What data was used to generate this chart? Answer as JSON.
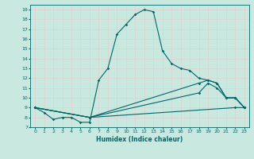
{
  "xlabel": "Humidex (Indice chaleur)",
  "background_color": "#c8e8e0",
  "grid_color": "#e0d0d0",
  "line_color": "#006868",
  "xlim": [
    -0.5,
    23.5
  ],
  "ylim": [
    7,
    19.5
  ],
  "xticks": [
    0,
    1,
    2,
    3,
    4,
    5,
    6,
    7,
    8,
    9,
    10,
    11,
    12,
    13,
    14,
    15,
    16,
    17,
    18,
    19,
    20,
    21,
    22,
    23
  ],
  "yticks": [
    7,
    8,
    9,
    10,
    11,
    12,
    13,
    14,
    15,
    16,
    17,
    18,
    19
  ],
  "lines": [
    {
      "x": [
        0,
        1,
        2,
        3,
        4,
        5,
        6,
        7,
        8,
        9,
        10,
        11,
        12,
        13,
        14,
        15,
        16,
        17,
        18,
        19,
        20,
        21,
        22,
        23
      ],
      "y": [
        9.0,
        8.5,
        7.8,
        8.0,
        8.0,
        7.5,
        7.5,
        11.8,
        13.0,
        16.5,
        17.5,
        18.5,
        19.0,
        18.8,
        14.8,
        13.5,
        13.0,
        12.8,
        12.0,
        11.8,
        11.5,
        10.0,
        10.0,
        9.0
      ]
    },
    {
      "x": [
        0,
        6,
        18,
        19,
        20,
        21,
        22,
        23
      ],
      "y": [
        9.0,
        8.0,
        11.5,
        11.8,
        11.5,
        10.0,
        10.0,
        9.0
      ]
    },
    {
      "x": [
        0,
        6,
        18,
        19,
        20,
        21,
        22,
        23
      ],
      "y": [
        9.0,
        8.0,
        10.5,
        11.5,
        11.0,
        10.0,
        10.0,
        9.0
      ]
    },
    {
      "x": [
        0,
        6,
        22,
        23
      ],
      "y": [
        9.0,
        8.0,
        9.0,
        9.0
      ]
    }
  ]
}
